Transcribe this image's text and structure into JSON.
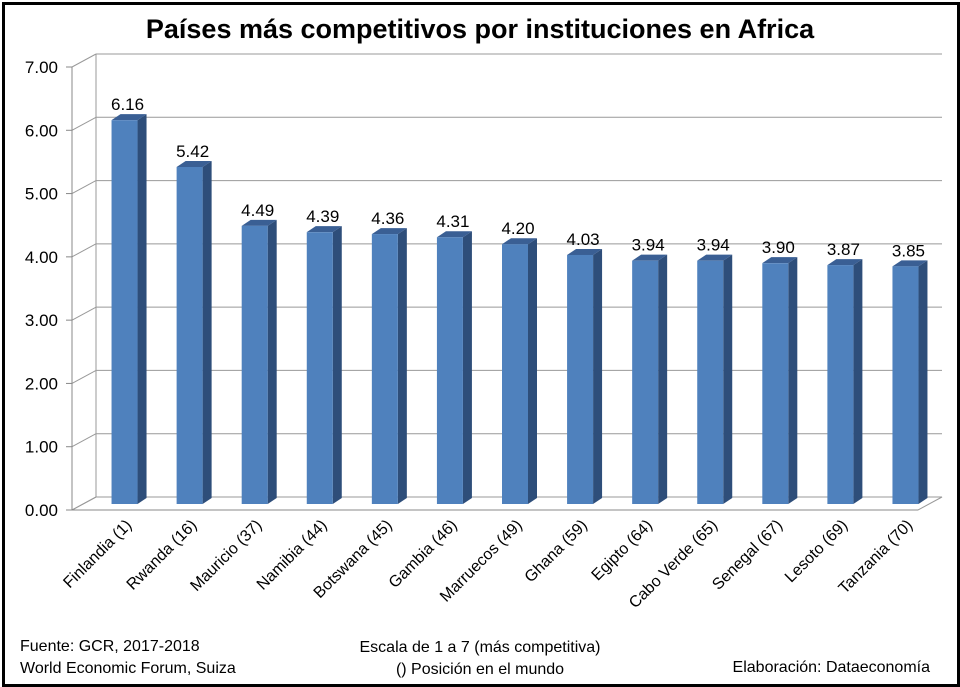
{
  "chart_data": {
    "type": "bar",
    "title": "Países más competitivos por instituciones en Africa",
    "categories": [
      "Finlandia (1)",
      "Rwanda (16)",
      "Mauricio (37)",
      "Namibia (44)",
      "Botswana (45)",
      "Gambia (46)",
      "Marruecos (49)",
      "Ghana (59)",
      "Egipto (64)",
      "Cabo Verde (65)",
      "Senegal (67)",
      "Lesoto (69)",
      "Tanzania (70)"
    ],
    "values": [
      6.16,
      5.42,
      4.49,
      4.39,
      4.36,
      4.31,
      4.2,
      4.03,
      3.94,
      3.94,
      3.9,
      3.87,
      3.85
    ],
    "value_labels": [
      "6.16",
      "5.42",
      "4.49",
      "4.39",
      "4.36",
      "4.31",
      "4.20",
      "4.03",
      "3.94",
      "3.94",
      "3.90",
      "3.87",
      "3.85"
    ],
    "ylim": [
      0,
      7
    ],
    "yticks": [
      "0.00",
      "1.00",
      "2.00",
      "3.00",
      "4.00",
      "5.00",
      "6.00",
      "7.00"
    ],
    "grid": true,
    "bar_color": "#4F81BD",
    "bar_side_color": "#2E4E7A",
    "bar_top_color": "#3A5F94"
  },
  "footer": {
    "source_line1": "Fuente:  GCR, 2017-2018",
    "source_line2": "World Economic Forum, Suiza",
    "scale_line1": "Escala de 1 a 7 (más competitiva)",
    "scale_line2": "() Posición en el mundo",
    "credit": "Elaboración: Dataeconomía"
  }
}
